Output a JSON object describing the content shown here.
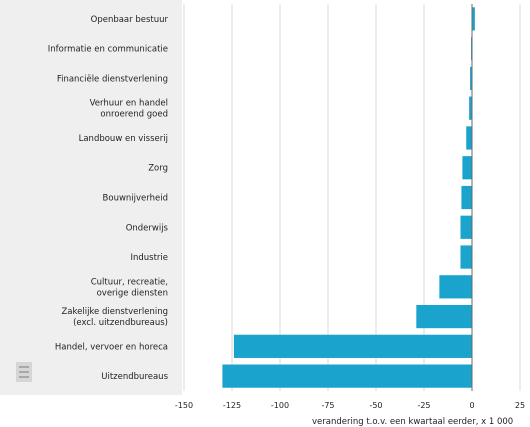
{
  "chart_data": {
    "type": "bar",
    "orientation": "horizontal",
    "categories": [
      "Openbaar bestuur",
      "Informatie en communicatie",
      "Financiële dienstverlening",
      "Verhuur en handel\nonroerend goed",
      "Landbouw en visserij",
      "Zorg",
      "Bouwnijverheid",
      "Onderwijs",
      "Industrie",
      "Cultuur, recreatie,\noverige diensten",
      "Zakelijke dienstverlening\n(excl. uitzendbureaus)",
      "Handel, vervoer en horeca",
      "Uitzendbureaus"
    ],
    "values": [
      1.5,
      -0.5,
      -1,
      -1.5,
      -3,
      -5,
      -5.5,
      -6,
      -6,
      -17,
      -29,
      -124,
      -130
    ],
    "xlabel": "verandering t.o.v. een kwartaal eerder, x 1 000",
    "xlim": [
      -150,
      25
    ],
    "xticks": [
      -150,
      -125,
      -100,
      -75,
      -50,
      -25,
      0,
      25
    ],
    "grid": true,
    "bar_color": "#1aa3cc",
    "label_panel_color": "#eeeeee",
    "legend": "none"
  }
}
